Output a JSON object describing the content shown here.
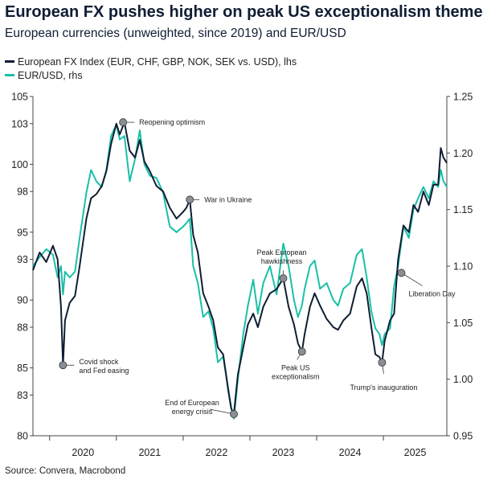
{
  "header": {
    "title": "European FX pushes higher on peak US exceptionalism theme",
    "subtitle": "European currencies (unweighted, since 2019) and EUR/USD"
  },
  "footer": {
    "source": "Source: Convera, Macrobond"
  },
  "colors": {
    "fx_index": "#0f1e33",
    "eurusd": "#19c0a8",
    "marker": "#8a8f96"
  },
  "chart_data": {
    "type": "line",
    "legend_position": "top-left",
    "grid": false,
    "x_ticks": [
      2020,
      2021,
      2022,
      2023,
      2024,
      2025
    ],
    "xlim": [
      2019.75,
      2025.95
    ],
    "y_left": {
      "ticks": [
        "80",
        "83",
        "85",
        "88",
        "90",
        "93",
        "95",
        "98",
        "100",
        "103",
        "105"
      ],
      "lim": [
        80,
        105
      ]
    },
    "y_right": {
      "ticks": [
        "0.95",
        "1.00",
        "1.05",
        "1.10",
        "1.15",
        "1.20",
        "1.25"
      ],
      "lim": [
        0.95,
        1.25
      ]
    },
    "series": [
      {
        "name": "European FX Index (EUR, CHF, GBP, NOK, SEK vs. USD), lhs",
        "axis": "left",
        "points": [
          [
            2019.75,
            92.2
          ],
          [
            2019.85,
            93.5
          ],
          [
            2019.95,
            92.8
          ],
          [
            2020.05,
            94.0
          ],
          [
            2020.12,
            93.0
          ],
          [
            2020.17,
            89.5
          ],
          [
            2020.2,
            85.2
          ],
          [
            2020.23,
            88.5
          ],
          [
            2020.3,
            89.8
          ],
          [
            2020.38,
            90.3
          ],
          [
            2020.45,
            92.5
          ],
          [
            2020.55,
            96.0
          ],
          [
            2020.62,
            97.5
          ],
          [
            2020.7,
            97.8
          ],
          [
            2020.78,
            98.4
          ],
          [
            2020.85,
            99.5
          ],
          [
            2020.92,
            101.5
          ],
          [
            2021.0,
            103.0
          ],
          [
            2021.05,
            102.2
          ],
          [
            2021.12,
            103.1
          ],
          [
            2021.2,
            101.0
          ],
          [
            2021.28,
            100.5
          ],
          [
            2021.35,
            101.8
          ],
          [
            2021.42,
            100.2
          ],
          [
            2021.5,
            99.5
          ],
          [
            2021.6,
            98.4
          ],
          [
            2021.7,
            98.0
          ],
          [
            2021.8,
            96.8
          ],
          [
            2021.9,
            96.0
          ],
          [
            2022.0,
            96.5
          ],
          [
            2022.05,
            96.8
          ],
          [
            2022.1,
            97.4
          ],
          [
            2022.15,
            94.8
          ],
          [
            2022.22,
            93.5
          ],
          [
            2022.3,
            90.5
          ],
          [
            2022.38,
            89.5
          ],
          [
            2022.45,
            88.5
          ],
          [
            2022.52,
            86.5
          ],
          [
            2022.6,
            86.0
          ],
          [
            2022.68,
            83.2
          ],
          [
            2022.72,
            82.0
          ],
          [
            2022.76,
            81.6
          ],
          [
            2022.82,
            84.5
          ],
          [
            2022.9,
            86.5
          ],
          [
            2022.97,
            88.2
          ],
          [
            2023.05,
            89.0
          ],
          [
            2023.12,
            88.0
          ],
          [
            2023.2,
            89.5
          ],
          [
            2023.3,
            90.5
          ],
          [
            2023.4,
            90.8
          ],
          [
            2023.5,
            91.6
          ],
          [
            2023.58,
            89.5
          ],
          [
            2023.66,
            88.2
          ],
          [
            2023.72,
            86.8
          ],
          [
            2023.78,
            86.2
          ],
          [
            2023.82,
            87.5
          ],
          [
            2023.9,
            89.5
          ],
          [
            2023.97,
            90.5
          ],
          [
            2024.05,
            89.6
          ],
          [
            2024.15,
            88.6
          ],
          [
            2024.25,
            88.0
          ],
          [
            2024.32,
            87.8
          ],
          [
            2024.4,
            88.5
          ],
          [
            2024.5,
            89.0
          ],
          [
            2024.6,
            91.0
          ],
          [
            2024.68,
            91.6
          ],
          [
            2024.75,
            90.5
          ],
          [
            2024.82,
            88.0
          ],
          [
            2024.88,
            86.0
          ],
          [
            2024.94,
            85.8
          ],
          [
            2024.98,
            85.4
          ],
          [
            2025.02,
            87.0
          ],
          [
            2025.1,
            88.5
          ],
          [
            2025.16,
            89.0
          ],
          [
            2025.22,
            93.0
          ],
          [
            2025.3,
            95.5
          ],
          [
            2025.38,
            95.0
          ],
          [
            2025.45,
            97.0
          ],
          [
            2025.52,
            96.5
          ],
          [
            2025.6,
            98.0
          ],
          [
            2025.68,
            97.0
          ],
          [
            2025.75,
            98.5
          ],
          [
            2025.82,
            98.5
          ],
          [
            2025.86,
            101.2
          ],
          [
            2025.9,
            100.5
          ],
          [
            2025.95,
            100.1
          ]
        ]
      },
      {
        "name": "EUR/USD, rhs",
        "axis": "right",
        "points": [
          [
            2019.75,
            1.1
          ],
          [
            2019.85,
            1.108
          ],
          [
            2019.95,
            1.115
          ],
          [
            2020.05,
            1.11
          ],
          [
            2020.12,
            1.09
          ],
          [
            2020.17,
            1.1
          ],
          [
            2020.2,
            1.075
          ],
          [
            2020.23,
            1.095
          ],
          [
            2020.3,
            1.09
          ],
          [
            2020.38,
            1.095
          ],
          [
            2020.45,
            1.125
          ],
          [
            2020.55,
            1.165
          ],
          [
            2020.62,
            1.185
          ],
          [
            2020.7,
            1.175
          ],
          [
            2020.78,
            1.17
          ],
          [
            2020.85,
            1.185
          ],
          [
            2020.92,
            1.215
          ],
          [
            2021.0,
            1.225
          ],
          [
            2021.05,
            1.212
          ],
          [
            2021.12,
            1.215
          ],
          [
            2021.2,
            1.175
          ],
          [
            2021.28,
            1.195
          ],
          [
            2021.35,
            1.22
          ],
          [
            2021.42,
            1.19
          ],
          [
            2021.5,
            1.18
          ],
          [
            2021.6,
            1.178
          ],
          [
            2021.7,
            1.165
          ],
          [
            2021.8,
            1.135
          ],
          [
            2021.9,
            1.13
          ],
          [
            2022.0,
            1.135
          ],
          [
            2022.05,
            1.138
          ],
          [
            2022.1,
            1.142
          ],
          [
            2022.15,
            1.1
          ],
          [
            2022.22,
            1.085
          ],
          [
            2022.3,
            1.055
          ],
          [
            2022.38,
            1.06
          ],
          [
            2022.45,
            1.045
          ],
          [
            2022.52,
            1.015
          ],
          [
            2022.6,
            1.02
          ],
          [
            2022.68,
            0.99
          ],
          [
            2022.72,
            0.975
          ],
          [
            2022.76,
            0.965
          ],
          [
            2022.82,
            1.0
          ],
          [
            2022.9,
            1.04
          ],
          [
            2022.97,
            1.065
          ],
          [
            2023.05,
            1.088
          ],
          [
            2023.12,
            1.058
          ],
          [
            2023.2,
            1.085
          ],
          [
            2023.3,
            1.1
          ],
          [
            2023.4,
            1.075
          ],
          [
            2023.5,
            1.12
          ],
          [
            2023.58,
            1.1
          ],
          [
            2023.66,
            1.07
          ],
          [
            2023.72,
            1.055
          ],
          [
            2023.78,
            1.065
          ],
          [
            2023.82,
            1.08
          ],
          [
            2023.9,
            1.1
          ],
          [
            2023.97,
            1.105
          ],
          [
            2024.05,
            1.08
          ],
          [
            2024.15,
            1.085
          ],
          [
            2024.25,
            1.07
          ],
          [
            2024.32,
            1.065
          ],
          [
            2024.4,
            1.08
          ],
          [
            2024.5,
            1.085
          ],
          [
            2024.6,
            1.11
          ],
          [
            2024.68,
            1.115
          ],
          [
            2024.75,
            1.09
          ],
          [
            2024.82,
            1.06
          ],
          [
            2024.88,
            1.045
          ],
          [
            2024.94,
            1.04
          ],
          [
            2024.98,
            1.03
          ],
          [
            2025.02,
            1.04
          ],
          [
            2025.1,
            1.045
          ],
          [
            2025.16,
            1.082
          ],
          [
            2025.22,
            1.1
          ],
          [
            2025.3,
            1.135
          ],
          [
            2025.38,
            1.125
          ],
          [
            2025.45,
            1.15
          ],
          [
            2025.52,
            1.16
          ],
          [
            2025.6,
            1.17
          ],
          [
            2025.68,
            1.16
          ],
          [
            2025.75,
            1.175
          ],
          [
            2025.82,
            1.17
          ],
          [
            2025.86,
            1.185
          ],
          [
            2025.9,
            1.175
          ],
          [
            2025.95,
            1.17
          ]
        ]
      }
    ],
    "annotations": [
      {
        "text": [
          "Covid shock",
          "and Fed easing"
        ],
        "x": 2020.2,
        "y": 85.2
      },
      {
        "text": [
          "Reopening optimism"
        ],
        "x": 2021.1,
        "y": 103.1
      },
      {
        "text": [
          "War in Ukraine"
        ],
        "x": 2022.1,
        "y": 97.4
      },
      {
        "text": [
          "Peak European",
          "hawkishness"
        ],
        "x": 2023.5,
        "y": 91.6
      },
      {
        "text": [
          "End of European",
          "energy crisis"
        ],
        "x": 2022.76,
        "y": 81.6
      },
      {
        "text": [
          "Peak US",
          "exceptionalism"
        ],
        "x": 2023.78,
        "y": 86.2
      },
      {
        "text": [
          "Trump's inauguration"
        ],
        "x": 2024.98,
        "y": 85.4
      },
      {
        "text": [
          "Liberation Day"
        ],
        "x": 2025.27,
        "y": 92.0
      }
    ]
  }
}
